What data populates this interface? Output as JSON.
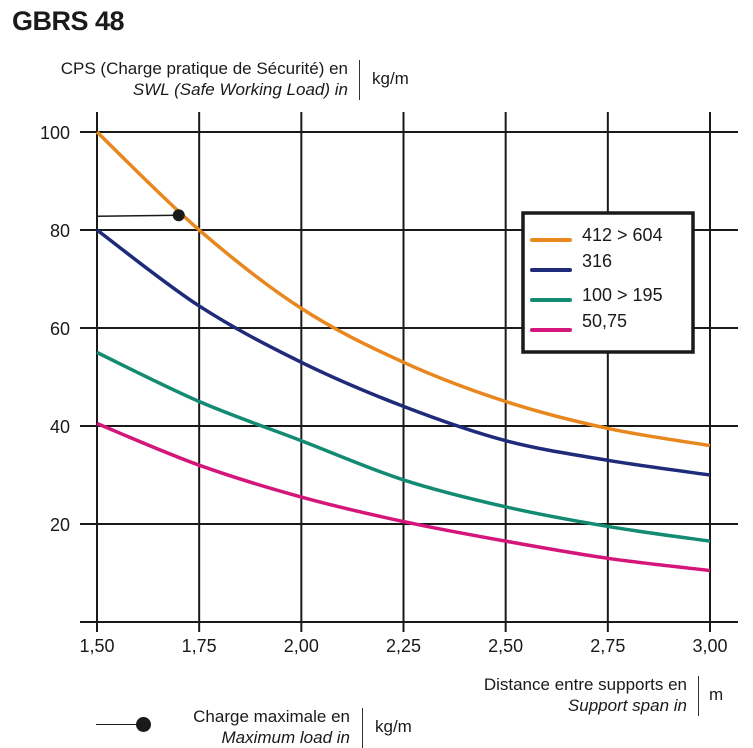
{
  "title": "GBRS 48",
  "y_axis_label": {
    "line1": "CPS (Charge pratique de Sécurité) en",
    "line2": "SWL (Safe Working Load) in",
    "unit": "kg/m"
  },
  "x_axis_label": {
    "line1": "Distance entre supports en",
    "line2": "Support span in",
    "unit": "m"
  },
  "marker_legend": {
    "line1": "Charge maximale en",
    "line2": "Maximum load in",
    "unit": "kg/m"
  },
  "chart_data": {
    "type": "line",
    "title": "GBRS 48",
    "xlabel": "Distance entre supports en / Support span in (m)",
    "ylabel": "CPS (Charge pratique de Sécurité) en / SWL (Safe Working Load) in (kg/m)",
    "xlim": [
      1.5,
      3.0
    ],
    "ylim": [
      0,
      100
    ],
    "grid": true,
    "legend_position": "top-right",
    "x_ticks": [
      "1,50",
      "1,75",
      "2,00",
      "2,25",
      "2,50",
      "2,75",
      "3,00"
    ],
    "y_ticks": [
      "20",
      "40",
      "60",
      "80",
      "100"
    ],
    "x": [
      1.5,
      1.75,
      2.0,
      2.25,
      2.5,
      2.75,
      3.0
    ],
    "series": [
      {
        "name": "412 > 604",
        "color": "#e8871e",
        "values": [
          100,
          80,
          64,
          53,
          45,
          39.5,
          36
        ]
      },
      {
        "name": "316",
        "color": "#1f2a7a",
        "values": [
          80,
          64.5,
          53,
          44,
          37,
          33,
          30
        ]
      },
      {
        "name": "100 > 195",
        "color": "#138a72",
        "values": [
          55,
          45,
          37,
          29,
          23.5,
          19.5,
          16.5
        ]
      },
      {
        "name": "50,75",
        "color": "#d4157a",
        "values": [
          40.5,
          32,
          25.5,
          20.5,
          16.5,
          13,
          10.5
        ]
      }
    ],
    "annotation": {
      "label": "Charge maximale en / Maximum load in (kg/m)",
      "x": 1.7,
      "y": 83,
      "color": "#1a1a1a"
    }
  }
}
